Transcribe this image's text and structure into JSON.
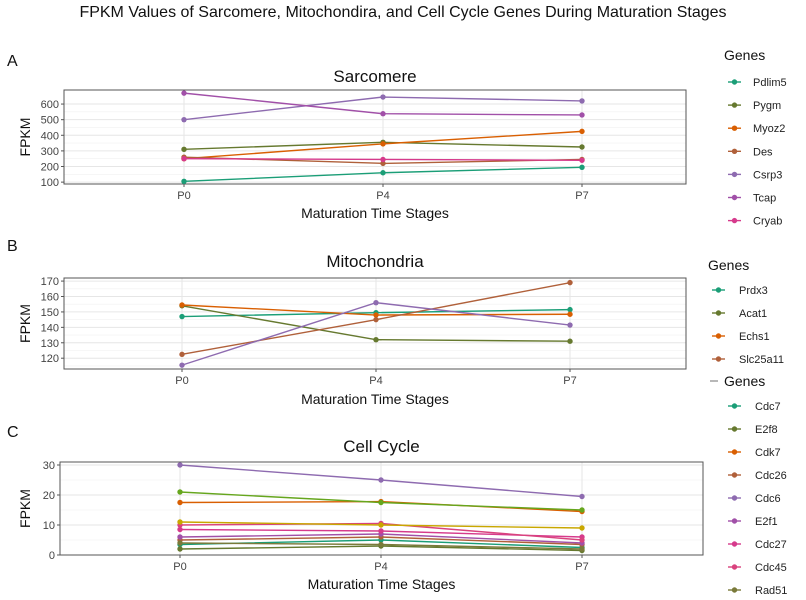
{
  "figure": {
    "title": "FPKM Values of Sarcomere, Mitochondira, and Cell Cycle Genes During Maturation Stages"
  },
  "chart_data": [
    {
      "type": "line",
      "panel": "A",
      "title": "Sarcomere",
      "xlabel": "Maturation Time Stages",
      "ylabel": "FPKM",
      "categories": [
        "P0",
        "P4",
        "P7"
      ],
      "yticks": [
        100,
        200,
        300,
        400,
        500,
        600
      ],
      "ylim": [
        88,
        690
      ],
      "grid": true,
      "legend": {
        "title": "Genes",
        "position": "right"
      },
      "series": [
        {
          "name": "Pdlim5",
          "color": "#1b9e77",
          "values": [
            105,
            160,
            195
          ]
        },
        {
          "name": "Pygm",
          "color": "#66792f",
          "values": [
            310,
            355,
            325
          ]
        },
        {
          "name": "Myoz2",
          "color": "#d95f02",
          "values": [
            250,
            345,
            425
          ]
        },
        {
          "name": "Des",
          "color": "#b0603a",
          "values": [
            260,
            220,
            245
          ]
        },
        {
          "name": "Csrp3",
          "color": "#8e6bb0",
          "values": [
            500,
            645,
            620
          ]
        },
        {
          "name": "Tcap",
          "color": "#a150a8",
          "values": [
            670,
            538,
            530
          ]
        },
        {
          "name": "Cryab",
          "color": "#d63a8c",
          "values": [
            250,
            245,
            240
          ]
        }
      ]
    },
    {
      "type": "line",
      "panel": "B",
      "title": "Mitochondria",
      "xlabel": "Maturation Time Stages",
      "ylabel": "FPKM",
      "categories": [
        "P0",
        "P4",
        "P7"
      ],
      "yticks": [
        120,
        130,
        140,
        150,
        160,
        170
      ],
      "ylim": [
        113,
        172
      ],
      "grid": true,
      "legend": {
        "title": "Genes",
        "position": "right"
      },
      "series": [
        {
          "name": "Prdx3",
          "color": "#1b9e77",
          "values": [
            147,
            149.5,
            151.5
          ]
        },
        {
          "name": "Acat1",
          "color": "#66792f",
          "values": [
            154,
            132,
            131
          ]
        },
        {
          "name": "Echs1",
          "color": "#d95f02",
          "values": [
            154.5,
            148,
            148.5
          ]
        },
        {
          "name": "Slc25a11",
          "color": "#b0603a",
          "values": [
            122.5,
            145,
            169
          ]
        },
        {
          "name": "",
          "color": "#8e6bb0",
          "values": [
            115.5,
            156,
            141.5
          ]
        }
      ]
    },
    {
      "type": "line",
      "panel": "C",
      "title": "Cell Cycle",
      "xlabel": "Maturation Time Stages",
      "ylabel": "FPKM",
      "categories": [
        "P0",
        "P4",
        "P7"
      ],
      "yticks": [
        0,
        10,
        20,
        30
      ],
      "ylim": [
        0,
        31
      ],
      "grid": true,
      "legend": {
        "title": "Genes",
        "position": "right"
      },
      "series": [
        {
          "name": "Cdc7",
          "color": "#1b9e77",
          "values": [
            3.5,
            5,
            2.5
          ]
        },
        {
          "name": "E2f8",
          "color": "#66792f",
          "values": [
            2,
            3,
            1.5
          ]
        },
        {
          "name": "Cdk7",
          "color": "#d95f02",
          "values": [
            17.5,
            17.8,
            14.5
          ]
        },
        {
          "name": "Cdc26",
          "color": "#b0603a",
          "values": [
            5,
            6,
            3.5
          ]
        },
        {
          "name": "Cdc6",
          "color": "#8e6bb0",
          "values": [
            30,
            25,
            19.5
          ]
        },
        {
          "name": "E2f1",
          "color": "#a150a8",
          "values": [
            6,
            7,
            4
          ]
        },
        {
          "name": "Cdc27",
          "color": "#d63a8c",
          "values": [
            8.5,
            8,
            6
          ]
        },
        {
          "name": "Cdc45",
          "color": "#d9437e",
          "values": [
            10,
            10.5,
            5
          ]
        },
        {
          "name": "Rad51",
          "color": "#7a7a3a",
          "values": [
            4,
            3.5,
            2
          ]
        },
        {
          "name": "",
          "color": "#66a61e",
          "values": [
            21,
            17.5,
            15
          ]
        },
        {
          "name": "",
          "color": "#c9a700",
          "values": [
            11,
            10,
            9
          ]
        }
      ]
    }
  ]
}
